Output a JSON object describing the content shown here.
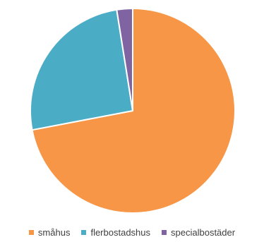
{
  "chart_data": {
    "type": "pie",
    "categories": [
      "småhus",
      "flerbostadshus",
      "specialbostäder"
    ],
    "values": [
      72,
      25.5,
      2.5
    ],
    "colors": [
      "#F79646",
      "#4BACC6",
      "#8064A2"
    ],
    "start_angle_deg": 0,
    "direction": "clockwise",
    "legend_position": "bottom"
  }
}
